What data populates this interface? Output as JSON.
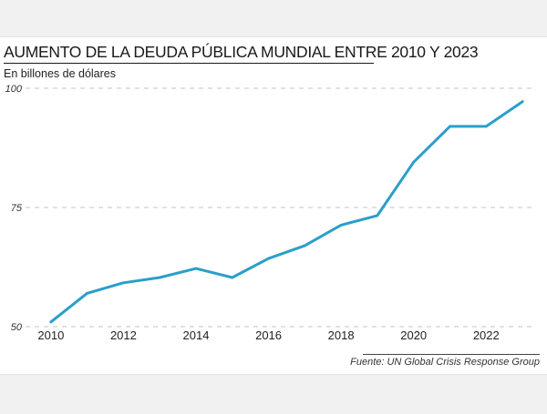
{
  "chart_data": {
    "type": "line",
    "title": "AUMENTO DE LA DEUDA PÚBLICA MUNDIAL ENTRE 2010 Y 2023",
    "subtitle": "En billones de dólares",
    "xlabel": "",
    "ylabel": "",
    "x": [
      2010,
      2011,
      2012,
      2013,
      2014,
      2015,
      2016,
      2017,
      2018,
      2019,
      2020,
      2021,
      2022,
      2023
    ],
    "values": [
      51,
      57,
      59.2,
      60.3,
      62.2,
      60.3,
      64.3,
      67,
      71.3,
      73.3,
      84.5,
      92,
      92,
      97.2
    ],
    "x_tick_labels": [
      "2010",
      "2012",
      "2014",
      "2016",
      "2018",
      "2020",
      "2022"
    ],
    "y_tick_labels": [
      "100",
      "75",
      "50"
    ],
    "y_ticks": [
      100,
      75,
      50
    ],
    "ylim": [
      50,
      100
    ],
    "xlim": [
      2009.3,
      2023.3
    ],
    "grid": "horizontal dashed",
    "line_color": "#2a9fca",
    "source": "Fuente: UN Global Crisis Response Group"
  }
}
